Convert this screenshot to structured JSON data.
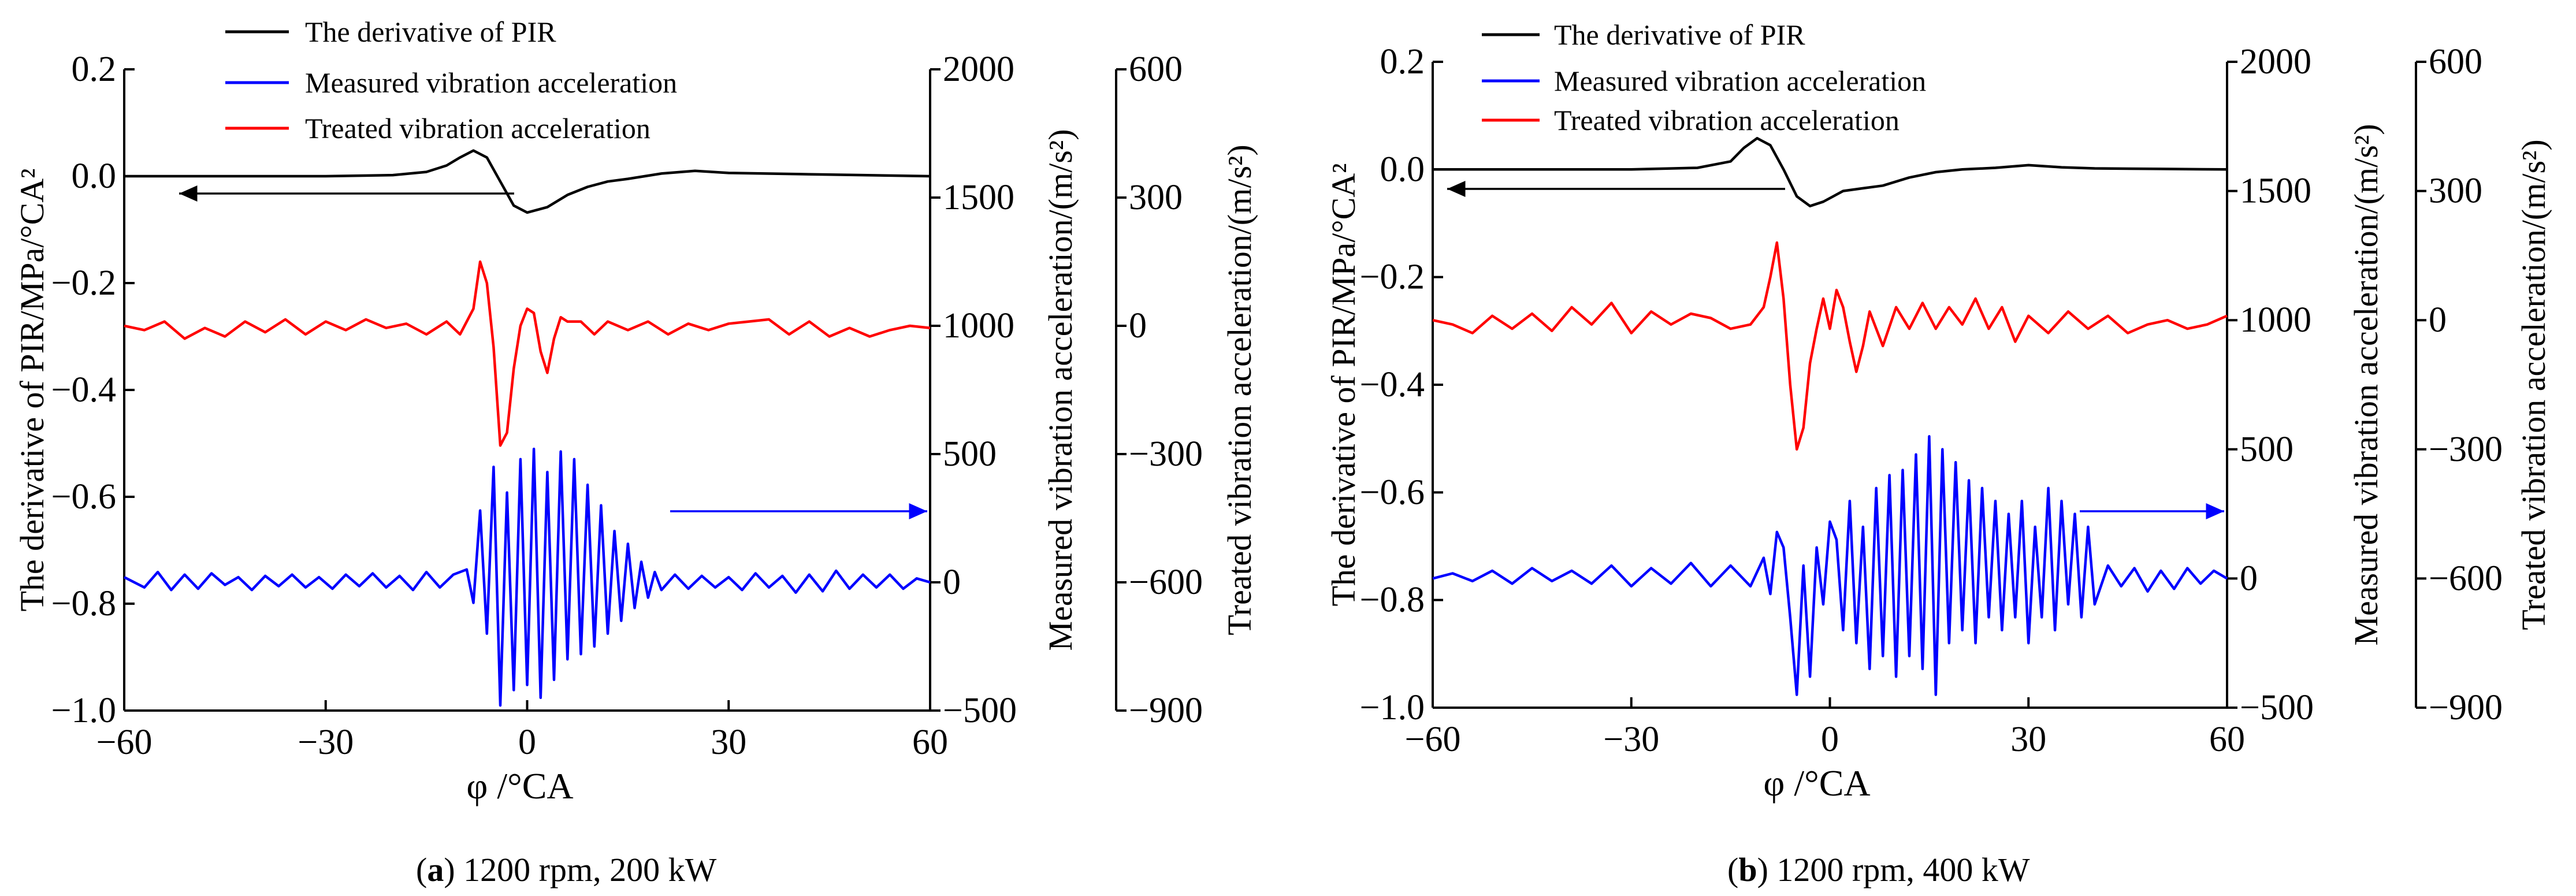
{
  "chart_data": [
    {
      "type": "line",
      "panel_label": "a",
      "caption_rest": " 1200 rpm, 200 kW",
      "xlabel": "φ /°CA",
      "xlim": [
        -60,
        60
      ],
      "x_ticks": [
        "−60",
        "−30",
        "0",
        "30",
        "60"
      ],
      "x_tick_values": [
        -60,
        -30,
        0,
        30,
        60
      ],
      "axes": {
        "left": {
          "label": "The derivative of PIR/MPa/°CA²",
          "range": [
            -1.0,
            0.2
          ],
          "tick_values": [
            -1.0,
            -0.8,
            -0.6,
            -0.4,
            -0.2,
            0.0,
            0.2
          ],
          "ticks": [
            "−1.0",
            "−0.8",
            "−0.6",
            "−0.4",
            "−0.2",
            "0.0",
            "0.2"
          ]
        },
        "right1": {
          "label": "Measured vibration acceleration/(m/s²)",
          "range": [
            -500,
            2000
          ],
          "tick_values": [
            -500,
            0,
            500,
            1000,
            1500,
            2000
          ],
          "ticks": [
            "−500",
            "0",
            "500",
            "1000",
            "1500",
            "2000"
          ]
        },
        "right2": {
          "label": "Treated vibration acceleration/(m/s²)",
          "range": [
            -900,
            600
          ],
          "tick_values": [
            -900,
            -600,
            -300,
            0,
            300,
            600
          ],
          "ticks": [
            "−900",
            "−600",
            "−300",
            "0",
            "300",
            "600"
          ]
        }
      },
      "series": [
        {
          "name": "The derivative of PIR",
          "color": "#000000",
          "axis": "left",
          "x": [
            -60,
            -30,
            -20,
            -15,
            -12,
            -10,
            -8,
            -6,
            -4,
            -2,
            0,
            3,
            6,
            9,
            12,
            15,
            20,
            25,
            30,
            40,
            50,
            60
          ],
          "values": [
            0.0,
            0.0,
            0.002,
            0.008,
            0.02,
            0.035,
            0.048,
            0.035,
            -0.01,
            -0.055,
            -0.068,
            -0.058,
            -0.035,
            -0.02,
            -0.01,
            -0.005,
            0.005,
            0.01,
            0.006,
            0.004,
            0.002,
            0.0
          ]
        },
        {
          "name": "Measured vibration acceleration",
          "color": "#0000ff",
          "axis": "right1",
          "x": [
            -60,
            -57,
            -55,
            -53,
            -51,
            -49,
            -47,
            -45,
            -43,
            -41,
            -39,
            -37,
            -35,
            -33,
            -31,
            -29,
            -27,
            -25,
            -23,
            -21,
            -19,
            -17,
            -15,
            -13,
            -11,
            -9,
            -8,
            -7,
            -6,
            -5,
            -4,
            -3,
            -2,
            -1,
            0,
            1,
            2,
            3,
            4,
            5,
            6,
            7,
            8,
            9,
            10,
            11,
            12,
            13,
            14,
            15,
            16,
            17,
            18,
            19,
            20,
            22,
            24,
            26,
            28,
            30,
            32,
            34,
            36,
            38,
            40,
            42,
            44,
            46,
            48,
            50,
            52,
            54,
            56,
            58,
            60
          ],
          "values": [
            20,
            -20,
            40,
            -30,
            30,
            -25,
            35,
            -10,
            20,
            -30,
            25,
            -15,
            30,
            -20,
            20,
            -25,
            30,
            -15,
            35,
            -20,
            25,
            -30,
            40,
            -20,
            30,
            50,
            -80,
            280,
            -200,
            450,
            -480,
            350,
            -420,
            480,
            -400,
            520,
            -450,
            430,
            -380,
            510,
            -300,
            480,
            -280,
            380,
            -250,
            300,
            -200,
            200,
            -150,
            150,
            -100,
            80,
            -60,
            40,
            -30,
            30,
            -25,
            25,
            -20,
            20,
            -30,
            35,
            -20,
            25,
            -40,
            30,
            -35,
            45,
            -25,
            30,
            -20,
            30,
            -25,
            15,
            0
          ]
        },
        {
          "name": "Treated vibration acceleration",
          "color": "#ff0000",
          "axis": "right2",
          "x": [
            -60,
            -57,
            -54,
            -51,
            -48,
            -45,
            -42,
            -39,
            -36,
            -33,
            -30,
            -27,
            -24,
            -21,
            -18,
            -15,
            -12,
            -10,
            -8,
            -7,
            -6,
            -5,
            -4,
            -3,
            -2,
            -1,
            0,
            1,
            2,
            3,
            4,
            5,
            6,
            8,
            10,
            12,
            15,
            18,
            21,
            24,
            27,
            30,
            33,
            36,
            39,
            42,
            45,
            48,
            51,
            54,
            57,
            60
          ],
          "values": [
            0,
            -10,
            10,
            -30,
            -5,
            -25,
            10,
            -15,
            15,
            -20,
            10,
            -10,
            15,
            -5,
            5,
            -20,
            10,
            -20,
            40,
            150,
            100,
            -50,
            -280,
            -250,
            -100,
            0,
            40,
            30,
            -60,
            -110,
            -30,
            20,
            10,
            10,
            -20,
            10,
            -10,
            10,
            -20,
            5,
            -10,
            5,
            10,
            15,
            -20,
            10,
            -25,
            -5,
            -25,
            -10,
            0,
            -5
          ]
        }
      ]
    },
    {
      "type": "line",
      "panel_label": "b",
      "caption_rest": " 1200 rpm, 400 kW",
      "xlabel": "φ /°CA",
      "xlim": [
        -60,
        60
      ],
      "x_ticks": [
        "−60",
        "−30",
        "0",
        "30",
        "60"
      ],
      "x_tick_values": [
        -60,
        -30,
        0,
        30,
        60
      ],
      "axes": {
        "left": {
          "label": "The derivative of PIR/MPa/°CA²",
          "range": [
            -1.0,
            0.2
          ],
          "tick_values": [
            -1.0,
            -0.8,
            -0.6,
            -0.4,
            -0.2,
            0.0,
            0.2
          ],
          "ticks": [
            "−1.0",
            "−0.8",
            "−0.6",
            "−0.4",
            "−0.2",
            "0.0",
            "0.2"
          ]
        },
        "right1": {
          "label": "Measured vibration acceleration/(m/s²)",
          "range": [
            -500,
            2000
          ],
          "tick_values": [
            -500,
            0,
            500,
            1000,
            1500,
            2000
          ],
          "ticks": [
            "−500",
            "0",
            "500",
            "1000",
            "1500",
            "2000"
          ]
        },
        "right2": {
          "label": "Treated vibration acceleration/(m/s²)",
          "range": [
            -900,
            600
          ],
          "tick_values": [
            -900,
            -600,
            -300,
            0,
            300,
            600
          ],
          "ticks": [
            "−900",
            "−600",
            "−300",
            "0",
            "300",
            "600"
          ]
        }
      },
      "series": [
        {
          "name": "The derivative of PIR",
          "color": "#000000",
          "axis": "left",
          "x": [
            -60,
            -30,
            -20,
            -15,
            -13,
            -11,
            -9,
            -7,
            -5,
            -3,
            -1,
            2,
            5,
            8,
            12,
            16,
            20,
            25,
            30,
            35,
            40,
            50,
            60
          ],
          "values": [
            0.0,
            0.0,
            0.003,
            0.015,
            0.04,
            0.058,
            0.045,
            0.0,
            -0.05,
            -0.068,
            -0.06,
            -0.04,
            -0.035,
            -0.03,
            -0.015,
            -0.005,
            0.0,
            0.003,
            0.008,
            0.004,
            0.002,
            0.001,
            0.0
          ]
        },
        {
          "name": "Measured vibration acceleration",
          "color": "#0000ff",
          "axis": "right1",
          "x": [
            -60,
            -57,
            -54,
            -51,
            -48,
            -45,
            -42,
            -39,
            -36,
            -33,
            -30,
            -27,
            -24,
            -21,
            -18,
            -15,
            -12,
            -10,
            -9,
            -8,
            -7,
            -6,
            -5,
            -4,
            -3,
            -2,
            -1,
            0,
            1,
            2,
            3,
            4,
            5,
            6,
            7,
            8,
            9,
            10,
            11,
            12,
            13,
            14,
            15,
            16,
            17,
            18,
            19,
            20,
            21,
            22,
            23,
            24,
            25,
            26,
            27,
            28,
            29,
            30,
            31,
            32,
            33,
            34,
            35,
            36,
            37,
            38,
            39,
            40,
            42,
            44,
            46,
            48,
            50,
            52,
            54,
            56,
            58,
            60
          ],
          "values": [
            0,
            20,
            -10,
            30,
            -20,
            40,
            -10,
            30,
            -20,
            50,
            -30,
            40,
            -20,
            60,
            -30,
            50,
            -30,
            80,
            -60,
            180,
            120,
            -150,
            -450,
            50,
            -380,
            120,
            -100,
            220,
            150,
            -200,
            300,
            -250,
            200,
            -350,
            350,
            -300,
            400,
            -380,
            420,
            -300,
            480,
            -350,
            550,
            -450,
            500,
            -250,
            450,
            -200,
            380,
            -250,
            350,
            -150,
            300,
            -200,
            250,
            -150,
            300,
            -250,
            200,
            -150,
            350,
            -200,
            300,
            -100,
            250,
            -150,
            200,
            -100,
            50,
            -30,
            40,
            -50,
            30,
            -40,
            40,
            -20,
            30,
            0
          ]
        },
        {
          "name": "Treated vibration acceleration",
          "color": "#ff0000",
          "axis": "right2",
          "x": [
            -60,
            -57,
            -54,
            -51,
            -48,
            -45,
            -42,
            -39,
            -36,
            -33,
            -30,
            -27,
            -24,
            -21,
            -18,
            -15,
            -12,
            -10,
            -9,
            -8,
            -7,
            -6,
            -5,
            -4,
            -3,
            -2,
            -1,
            0,
            1,
            2,
            3,
            4,
            5,
            6,
            8,
            10,
            12,
            14,
            16,
            18,
            20,
            22,
            24,
            26,
            28,
            30,
            33,
            36,
            39,
            42,
            45,
            48,
            51,
            54,
            57,
            60
          ],
          "values": [
            0,
            -10,
            -30,
            10,
            -20,
            15,
            -25,
            30,
            -10,
            40,
            -30,
            20,
            -10,
            15,
            5,
            -20,
            -10,
            30,
            100,
            180,
            50,
            -150,
            -300,
            -250,
            -100,
            -20,
            50,
            -20,
            70,
            30,
            -50,
            -120,
            -60,
            20,
            -60,
            30,
            -20,
            40,
            -20,
            30,
            -10,
            50,
            -20,
            30,
            -50,
            10,
            -30,
            20,
            -20,
            10,
            -30,
            -10,
            0,
            -20,
            -10,
            10
          ]
        }
      ]
    }
  ]
}
